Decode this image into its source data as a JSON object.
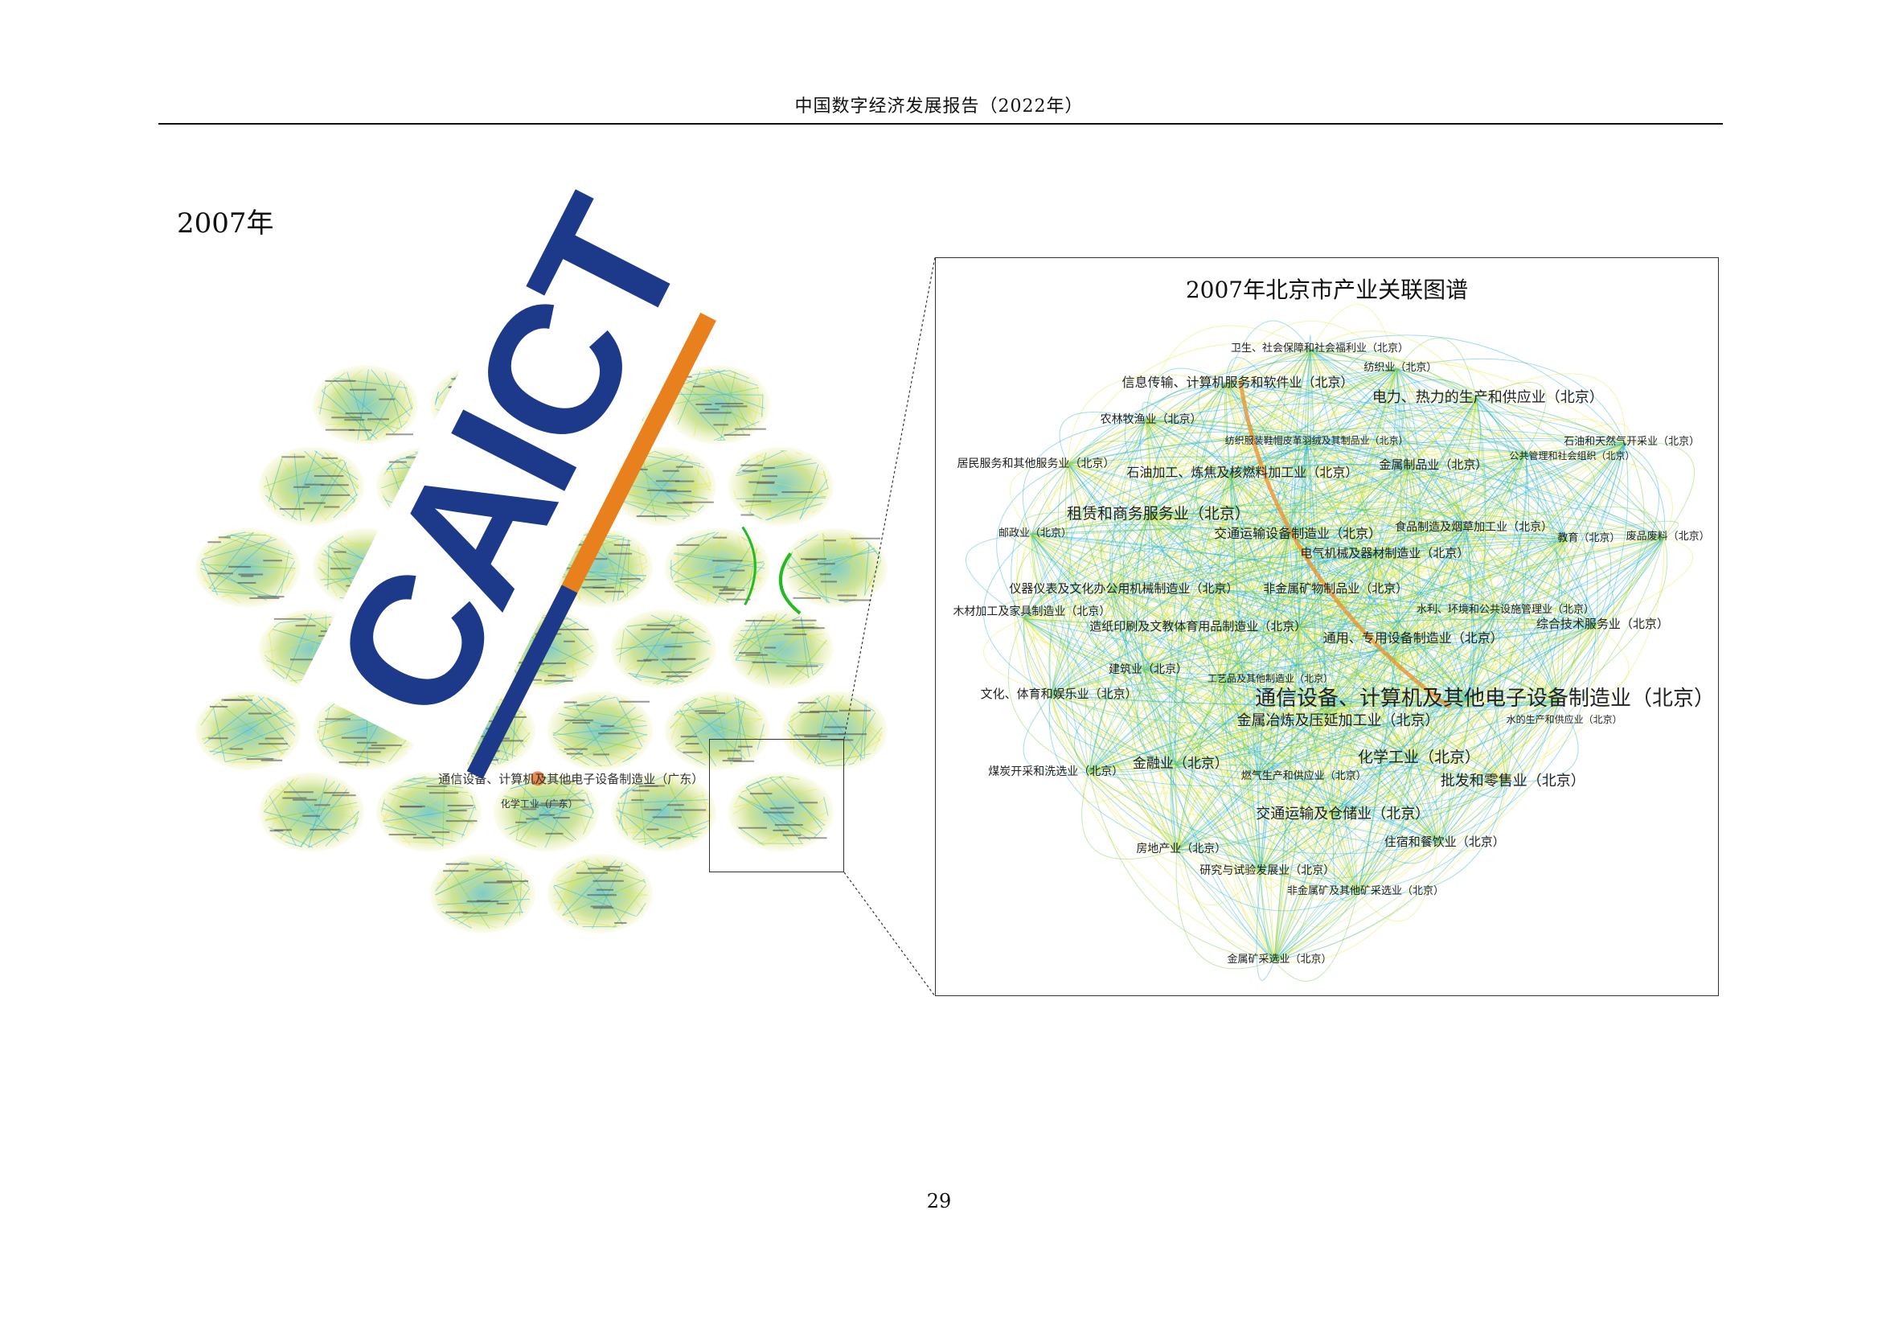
{
  "header": {
    "title": "中国数字经济发展报告（2022年）"
  },
  "section": {
    "year_label": "2007年"
  },
  "watermark": {
    "logo_text": "CAICT"
  },
  "left_map": {
    "visible_labels": [
      "通信设备、计算机及其他电子设备制造业（广东）",
      "化学工业（广东）"
    ]
  },
  "panel": {
    "title": "2007年北京市产业关联图谱",
    "nodes": [
      "卫生、社会保障和社会福利业（北京）",
      "纺织业（北京）",
      "信息传输、计算机服务和软件业（北京）",
      "电力、热力的生产和供应业（北京）",
      "农林牧渔业（北京）",
      "纺织服装鞋帽皮革羽绒及其制品业（北京）",
      "石油和天然气开采业（北京）",
      "公共管理和社会组织（北京）",
      "居民服务和其他服务业（北京）",
      "石油加工、炼焦及核燃料加工业（北京）",
      "金属制品业（北京）",
      "租赁和商务服务业（北京）",
      "邮政业（北京）",
      "交通运输设备制造业（北京）",
      "食品制造及烟草加工业（北京）",
      "教育（北京）",
      "废品废料（北京）",
      "电气机械及器材制造业（北京）",
      "仪器仪表及文化办公用机械制造业（北京）",
      "非金属矿物制品业（北京）",
      "木材加工及家具制造业（北京）",
      "水利、环境和公共设施管理业（北京）",
      "造纸印刷及文教体育用品制造业（北京）",
      "综合技术服务业（北京）",
      "通用、专用设备制造业（北京）",
      "建筑业（北京）",
      "工艺品及其他制造业（北京）",
      "文化、体育和娱乐业（北京）",
      "通信设备、计算机及其他电子设备制造业（北京）",
      "水的生产和供应业（北京）",
      "金属冶炼及压延加工业（北京）",
      "化学工业（北京）",
      "金融业（北京）",
      "煤炭开采和洗选业（北京）",
      "燃气生产和供应业（北京）",
      "批发和零售业（北京）",
      "交通运输及仓储业（北京）",
      "住宿和餐饮业（北京）",
      "房地产业（北京）",
      "研究与试验发展业（北京）",
      "非金属矿及其他矿采选业（北京）",
      "金属矿采选业（北京）"
    ]
  },
  "colors": {
    "edge_blue": "#1fb0d8",
    "edge_yellow": "#e6e632",
    "edge_green": "#6fd03a",
    "strong_edge": "#e8902a",
    "logo_blue": "#1d3a8a",
    "logo_orange": "#e8801e"
  },
  "footer": {
    "page_number": "29"
  }
}
